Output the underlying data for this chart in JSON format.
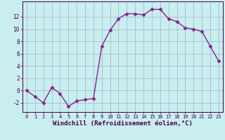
{
  "x": [
    0,
    1,
    2,
    3,
    4,
    5,
    6,
    7,
    8,
    9,
    10,
    11,
    12,
    13,
    14,
    15,
    16,
    17,
    18,
    19,
    20,
    21,
    22,
    23
  ],
  "y": [
    0,
    -1,
    -2,
    0.5,
    -0.5,
    -2.6,
    -1.7,
    -1.5,
    -1.3,
    7.2,
    9.8,
    11.7,
    12.5,
    12.5,
    12.3,
    13.2,
    13.2,
    11.7,
    11.2,
    10.2,
    10.0,
    9.6,
    7.2,
    4.8
  ],
  "line_color": "#882288",
  "marker": "D",
  "markersize": 2.5,
  "linewidth": 1.0,
  "bg_color": "#c8eef0",
  "grid_color": "#aabbcc",
  "xlabel": "Windchill (Refroidissement éolien,°C)",
  "xlabel_fontsize": 6.5,
  "xtick_labels": [
    "0",
    "1",
    "2",
    "3",
    "4",
    "5",
    "6",
    "7",
    "8",
    "9",
    "10",
    "11",
    "12",
    "13",
    "14",
    "15",
    "16",
    "17",
    "18",
    "19",
    "20",
    "21",
    "22",
    "23"
  ],
  "ytick_values": [
    -2,
    0,
    2,
    4,
    6,
    8,
    10,
    12
  ],
  "ylim": [
    -3.5,
    14.5
  ],
  "xlim": [
    -0.5,
    23.5
  ]
}
